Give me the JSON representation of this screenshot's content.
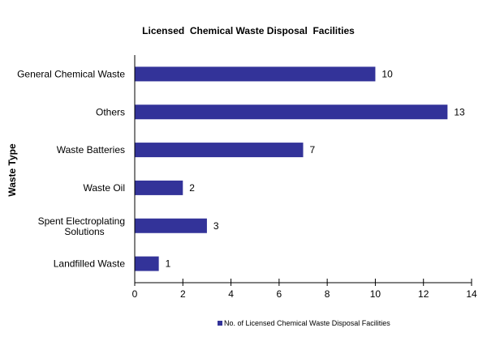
{
  "chart_data": {
    "type": "bar",
    "orientation": "horizontal",
    "title": "Licensed  Chemical Waste Disposal  Facilities",
    "xlabel": "",
    "ylabel": "Waste Type",
    "categories": [
      "General Chemical Waste",
      "Others",
      "Waste Batteries",
      "Waste Oil",
      "Spent Electroplating Solutions",
      "Landfilled Waste"
    ],
    "series": [
      {
        "name": "No. of Licensed Chemical Waste Disposal Facilities",
        "values": [
          10,
          13,
          7,
          2,
          3,
          1
        ],
        "color": "#333399"
      }
    ],
    "xlim": [
      0,
      14
    ],
    "xticks": [
      "0",
      "2",
      "4",
      "6",
      "8",
      "10",
      "12",
      "14"
    ],
    "grid": false,
    "legend": "bottom",
    "data_labels": true
  }
}
